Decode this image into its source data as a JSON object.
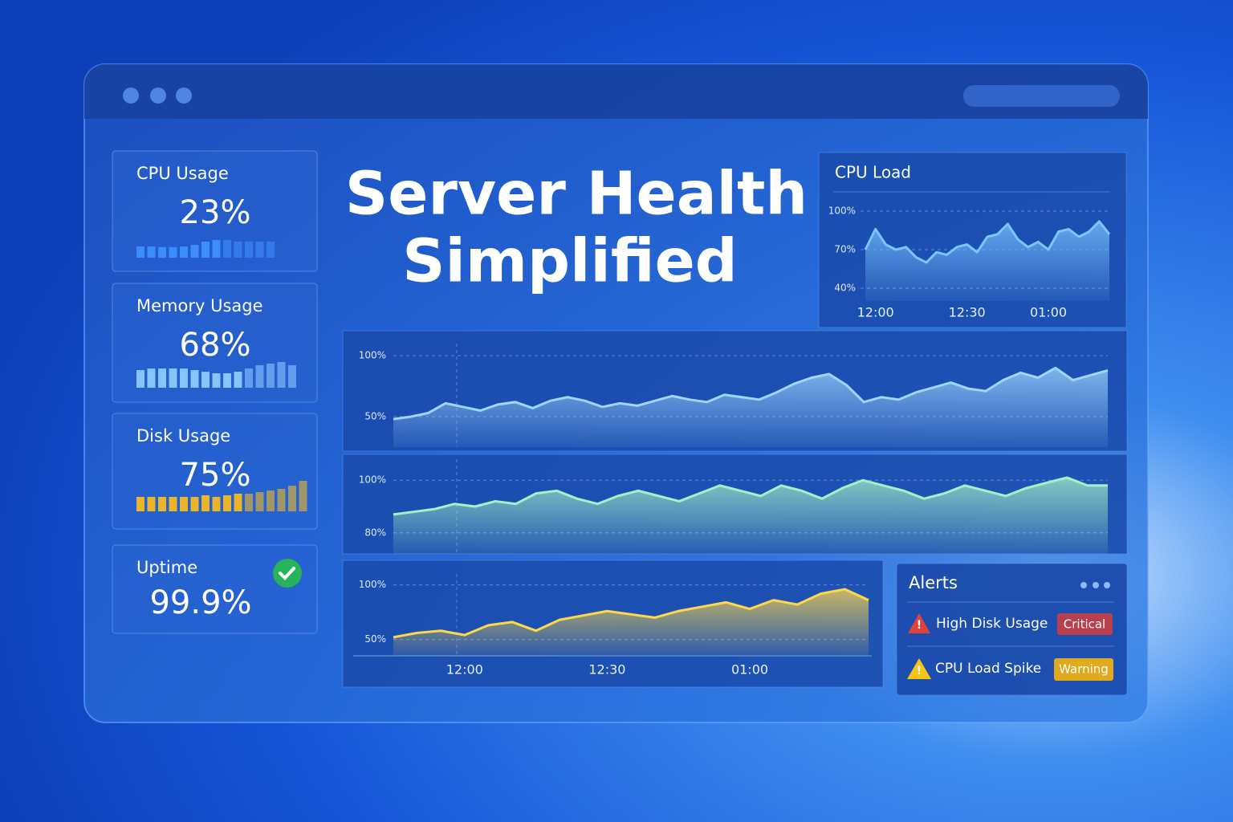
{
  "headline": [
    "Server Health",
    "Simplified"
  ],
  "cards": [
    {
      "title": "CPU Usage",
      "value": "23%",
      "color": "#3d8fff",
      "bars": [
        35,
        35,
        33,
        33,
        35,
        40,
        50,
        55,
        55,
        50,
        50,
        50,
        50
      ]
    },
    {
      "title": "Memory Usage",
      "value": "68%",
      "color": "#8cc8ff",
      "bars": [
        55,
        60,
        60,
        60,
        60,
        55,
        50,
        45,
        45,
        50,
        60,
        70,
        75,
        80,
        70
      ]
    },
    {
      "title": "Disk Usage",
      "value": "75%",
      "color": "#f5b820",
      "bars": [
        45,
        45,
        45,
        45,
        45,
        45,
        50,
        45,
        50,
        55,
        55,
        60,
        65,
        70,
        80,
        95
      ]
    },
    {
      "title": "Uptime",
      "value": "99.9%"
    }
  ],
  "alerts": {
    "title": "Alerts",
    "items": [
      {
        "label": "High Disk Usage",
        "badge": "Critical"
      },
      {
        "label": "CPU Load Spike",
        "badge": "Warning"
      }
    ]
  },
  "chart_data": [
    {
      "type": "area",
      "title": "CPU Load",
      "color": "#7cc4ff",
      "categories": [
        null,
        "12:00",
        null,
        null,
        null,
        null,
        null,
        null,
        null,
        null,
        "12:30",
        null,
        null,
        null,
        null,
        null,
        null,
        null,
        "01:00",
        null,
        null,
        null,
        null,
        null,
        null
      ],
      "values": [
        70,
        86,
        74,
        70,
        72,
        64,
        60,
        68,
        66,
        72,
        74,
        68,
        80,
        82,
        90,
        78,
        72,
        76,
        70,
        84,
        86,
        80,
        84,
        92,
        82
      ],
      "ylim": [
        30,
        105
      ],
      "yticks": [
        {
          "value": 100,
          "label": "100%"
        },
        {
          "value": 70,
          "label": "70%"
        },
        {
          "value": 40,
          "label": "40%"
        }
      ],
      "grid": true
    },
    {
      "type": "area",
      "color": "#9fd6ff",
      "values": [
        48,
        50,
        53,
        61,
        58,
        55,
        60,
        62,
        57,
        63,
        66,
        63,
        58,
        61,
        59,
        63,
        67,
        64,
        62,
        68,
        66,
        64,
        70,
        77,
        82,
        85,
        76,
        62,
        66,
        64,
        70,
        74,
        78,
        73,
        71,
        80,
        86,
        82,
        90,
        80,
        84,
        88
      ],
      "ylim": [
        25,
        110
      ],
      "yticks": [
        {
          "value": 100,
          "label": "100%"
        },
        {
          "value": 50,
          "label": "50%"
        }
      ],
      "grid": true
    },
    {
      "type": "area",
      "color": "#a6f0c6",
      "values": [
        87,
        88,
        89,
        91,
        90,
        92,
        91,
        95,
        96,
        93,
        91,
        94,
        96,
        94,
        92,
        95,
        98,
        96,
        94,
        98,
        96,
        93,
        97,
        100,
        98,
        96,
        93,
        95,
        98,
        96,
        94,
        97,
        99,
        101,
        98,
        98
      ],
      "ylim": [
        72,
        108
      ],
      "yticks": [
        {
          "value": 100,
          "label": "100%"
        },
        {
          "value": 80,
          "label": "80%"
        }
      ],
      "grid": true
    },
    {
      "type": "area",
      "color": "#ffd84a",
      "categories": [
        null,
        null,
        null,
        "12:00",
        null,
        null,
        null,
        null,
        null,
        "12:30",
        null,
        null,
        null,
        null,
        null,
        "01:00",
        null,
        null,
        null,
        null,
        null
      ],
      "values": [
        52,
        56,
        58,
        54,
        63,
        66,
        58,
        68,
        72,
        76,
        73,
        70,
        76,
        80,
        84,
        78,
        86,
        82,
        92,
        96,
        86
      ],
      "ylim": [
        35,
        110
      ],
      "yticks": [
        {
          "value": 100,
          "label": "100%"
        },
        {
          "value": 50,
          "label": "50%"
        }
      ],
      "grid": true
    }
  ]
}
